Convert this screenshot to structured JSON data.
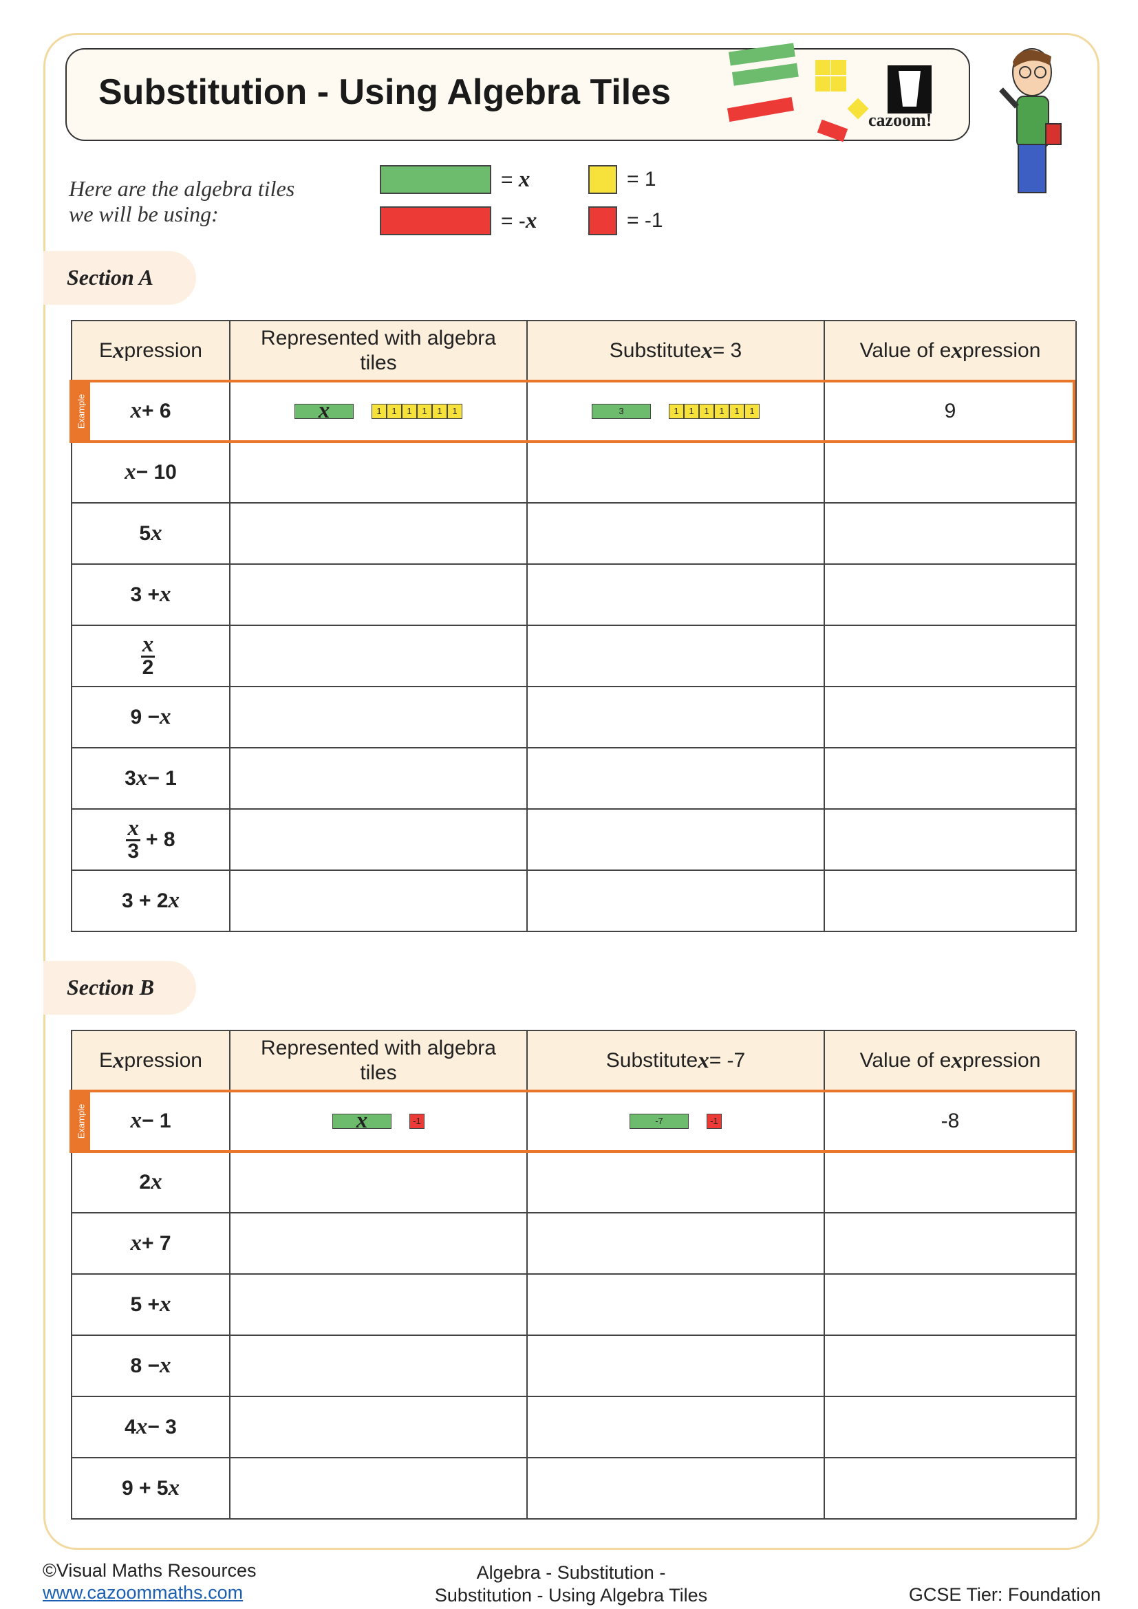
{
  "header": {
    "title": "Substitution - Using Algebra Tiles",
    "logo": "cazoom!"
  },
  "key": {
    "intro": [
      "Here are the algebra tiles",
      "we will be using:"
    ],
    "tiles": [
      {
        "label": "= x",
        "color": "#6dbb6d",
        "kind": "long"
      },
      {
        "label": "= 1",
        "color": "#f7e23b",
        "kind": "square"
      },
      {
        "label": "= -x",
        "color": "#ec3b37",
        "kind": "long"
      },
      {
        "label": "= -1",
        "color": "#ec3b37",
        "kind": "square"
      }
    ]
  },
  "sections": [
    {
      "title": "Section A",
      "headers": [
        "Expression",
        "Represented with algebra tiles",
        "Substitute x = 3",
        "Value of expression"
      ],
      "example": {
        "tag": "Example",
        "expression": "x + 6",
        "tiles": [
          {
            "label": "x",
            "color": "#6dbb6d",
            "kind": "long"
          },
          {
            "label": "1",
            "color": "#f7e23b",
            "kind": "square"
          },
          {
            "label": "1",
            "color": "#f7e23b",
            "kind": "square"
          },
          {
            "label": "1",
            "color": "#f7e23b",
            "kind": "square"
          },
          {
            "label": "1",
            "color": "#f7e23b",
            "kind": "square"
          },
          {
            "label": "1",
            "color": "#f7e23b",
            "kind": "square"
          },
          {
            "label": "1",
            "color": "#f7e23b",
            "kind": "square"
          }
        ],
        "substituted": [
          {
            "label": "3",
            "color": "#6dbb6d",
            "kind": "long"
          },
          {
            "label": "1",
            "color": "#f7e23b",
            "kind": "square"
          },
          {
            "label": "1",
            "color": "#f7e23b",
            "kind": "square"
          },
          {
            "label": "1",
            "color": "#f7e23b",
            "kind": "square"
          },
          {
            "label": "1",
            "color": "#f7e23b",
            "kind": "square"
          },
          {
            "label": "1",
            "color": "#f7e23b",
            "kind": "square"
          },
          {
            "label": "1",
            "color": "#f7e23b",
            "kind": "square"
          }
        ],
        "value": "9"
      },
      "rows": [
        "x − 10",
        "5x",
        "3 + x",
        {
          "num": "x",
          "den": "2"
        },
        "9 − x",
        "3x − 1",
        {
          "num": "x",
          "den": "3",
          "after": "+ 8"
        },
        "3 + 2x"
      ]
    },
    {
      "title": "Section B",
      "headers": [
        "Expression",
        "Represented with algebra tiles",
        "Substitute x = -7",
        "Value of expression"
      ],
      "example": {
        "tag": "Example",
        "expression": "x − 1",
        "tiles": [
          {
            "label": "x",
            "color": "#6dbb6d",
            "kind": "long"
          },
          {
            "label": "-1",
            "color": "#ec3b37",
            "kind": "square"
          }
        ],
        "substituted": [
          {
            "label": "-7",
            "color": "#6dbb6d",
            "kind": "long"
          },
          {
            "label": "-1",
            "color": "#ec3b37",
            "kind": "square"
          }
        ],
        "value": "-8"
      },
      "rows": [
        "2x",
        "x + 7",
        "5 + x",
        "8 − x",
        "4x − 3",
        "9 + 5x"
      ]
    }
  ],
  "footer": {
    "copyright": "©Visual Maths Resources",
    "link": "www.cazoommaths.com",
    "topic": [
      "Algebra - Substitution -",
      "Substitution - Using Algebra Tiles"
    ],
    "tier": "GCSE Tier: Foundation"
  }
}
